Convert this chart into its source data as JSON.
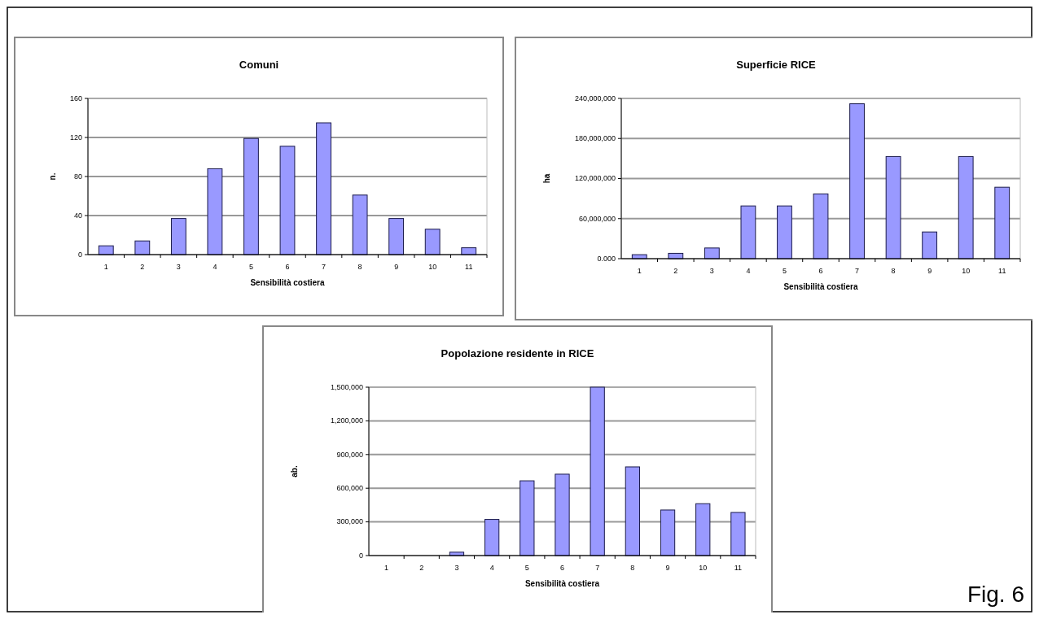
{
  "chart_data": [
    {
      "type": "bar",
      "title": "Comuni",
      "xlabel": "Sensibilità costiera",
      "ylabel": "n.",
      "categories": [
        "1",
        "2",
        "3",
        "4",
        "5",
        "6",
        "7",
        "8",
        "9",
        "10",
        "11"
      ],
      "series": [
        {
          "color": "#9999ff",
          "values": [
            9,
            14,
            37,
            88,
            119,
            111,
            135,
            61,
            37,
            26,
            7
          ]
        }
      ],
      "ylim": [
        0,
        160
      ],
      "yticks": [
        0,
        40,
        80,
        120,
        160
      ],
      "grid": "y"
    },
    {
      "type": "bar",
      "title": "Superficie RICE",
      "xlabel": "Sensibilità costiera",
      "ylabel": "ha",
      "categories": [
        "1",
        "2",
        "3",
        "4",
        "5",
        "6",
        "7",
        "8",
        "9",
        "10",
        "11"
      ],
      "series": [
        {
          "color": "#9999ff",
          "values": [
            6000000,
            8000000,
            16000000,
            79000000,
            79000000,
            97000000,
            232000000,
            153000000,
            40000000,
            153000000,
            107000000
          ]
        }
      ],
      "ylim": [
        0,
        240000000
      ],
      "yticks": [
        {
          "value": 0,
          "label": "0.000"
        },
        {
          "value": 60000000,
          "label": "60,000,000"
        },
        {
          "value": 120000000,
          "label": "120,000,000"
        },
        {
          "value": 180000000,
          "label": "180,000,000"
        },
        {
          "value": 240000000,
          "label": "240,000,000"
        }
      ],
      "grid": "y"
    },
    {
      "type": "bar",
      "title": "Popolazione residente in RICE",
      "xlabel": "Sensibilità costiera",
      "ylabel": "ab.",
      "categories": [
        "1",
        "2",
        "3",
        "4",
        "5",
        "6",
        "7",
        "8",
        "9",
        "10",
        "11"
      ],
      "series": [
        {
          "color": "#9999ff",
          "values": [
            null,
            null,
            30000,
            322000,
            666000,
            725000,
            1500000,
            790000,
            406000,
            462000,
            384000
          ]
        }
      ],
      "ylim": [
        0,
        1500000
      ],
      "yticks": [
        {
          "value": 0,
          "label": "0"
        },
        {
          "value": 300000,
          "label": "300,000"
        },
        {
          "value": 600000,
          "label": "600,000"
        },
        {
          "value": 900000,
          "label": "900,000"
        },
        {
          "value": 1200000,
          "label": "1,200,000"
        },
        {
          "value": 1500000,
          "label": "1,500,000"
        }
      ],
      "grid": "y",
      "annotations": [
        "Fig. 6"
      ]
    }
  ]
}
